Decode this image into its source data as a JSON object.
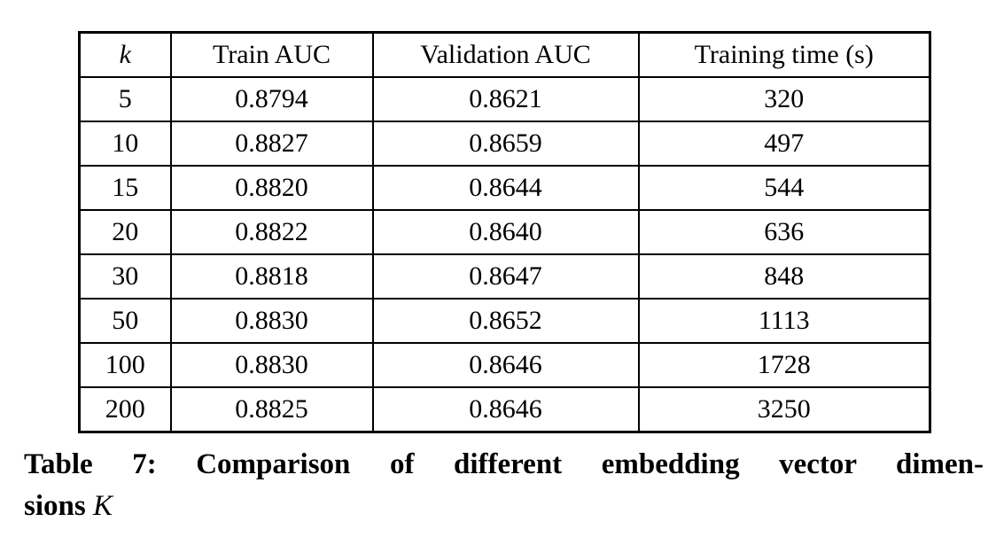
{
  "colors": {
    "text": "#000000",
    "background": "#ffffff",
    "border": "#000000"
  },
  "table": {
    "headers": [
      "k",
      "Train AUC",
      "Validation AUC",
      "Training time (s)"
    ],
    "rows": [
      [
        "5",
        "0.8794",
        "0.8621",
        "320"
      ],
      [
        "10",
        "0.8827",
        "0.8659",
        "497"
      ],
      [
        "15",
        "0.8820",
        "0.8644",
        "544"
      ],
      [
        "20",
        "0.8822",
        "0.8640",
        "636"
      ],
      [
        "30",
        "0.8818",
        "0.8647",
        "848"
      ],
      [
        "50",
        "0.8830",
        "0.8652",
        "1113"
      ],
      [
        "100",
        "0.8830",
        "0.8646",
        "1728"
      ],
      [
        "200",
        "0.8825",
        "0.8646",
        "3250"
      ]
    ]
  },
  "caption": {
    "line1": "Table 7: Comparison of different embedding vector dimen-",
    "line2_text": "sions ",
    "line2_symbol": "K"
  },
  "chart_data": {
    "type": "table",
    "title": "Table 7: Comparison of different embedding vector dimensions K",
    "categories": [
      "k",
      "Train AUC",
      "Validation AUC",
      "Training time (s)"
    ],
    "series": [
      {
        "name": "k",
        "values": [
          5,
          10,
          15,
          20,
          30,
          50,
          100,
          200
        ]
      },
      {
        "name": "Train AUC",
        "values": [
          0.8794,
          0.8827,
          0.882,
          0.8822,
          0.8818,
          0.883,
          0.883,
          0.8825
        ]
      },
      {
        "name": "Validation AUC",
        "values": [
          0.8621,
          0.8659,
          0.8644,
          0.864,
          0.8647,
          0.8652,
          0.8646,
          0.8646
        ]
      },
      {
        "name": "Training time (s)",
        "values": [
          320,
          497,
          544,
          636,
          848,
          1113,
          1728,
          3250
        ]
      }
    ]
  }
}
